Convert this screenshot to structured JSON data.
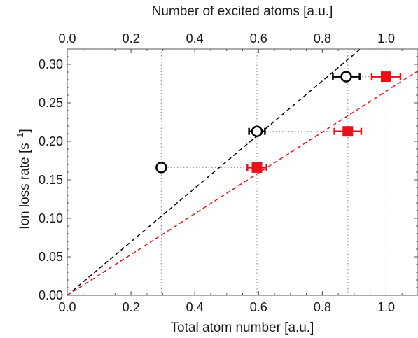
{
  "chart_data": {
    "type": "scatter",
    "title": "",
    "xlabel": "Total atom number [a.u.]",
    "x2label": "Number of excited atoms [a.u.]",
    "ylabel_main": "Ion loss rate [s",
    "ylabel_sup": "−1",
    "ylabel_close": "]",
    "xlim": [
      0.0,
      1.1
    ],
    "ylim": [
      0.0,
      0.32
    ],
    "xticks": [
      "0.0",
      "0.2",
      "0.4",
      "0.6",
      "0.8",
      "1.0"
    ],
    "x2ticks": [
      "0.0",
      "0.2",
      "0.4",
      "0.6",
      "0.8",
      "1.0"
    ],
    "yticks": [
      "0.00",
      "0.05",
      "0.10",
      "0.15",
      "0.20",
      "0.25",
      "0.30"
    ],
    "grid": false,
    "colors": {
      "excited": "#000000",
      "total": "#e8111a",
      "connector": "#999999",
      "axis": "#555555"
    },
    "series": [
      {
        "marker": "open-circle",
        "color": "#000000",
        "points": [
          {
            "x": 0.295,
            "y": 0.166,
            "xerr": 0.0
          },
          {
            "x": 0.595,
            "y": 0.213,
            "xerr": 0.025
          },
          {
            "x": 0.875,
            "y": 0.284,
            "xerr": 0.042
          }
        ]
      },
      {
        "marker": "filled-square",
        "color": "#e8111a",
        "points": [
          {
            "x": 0.595,
            "y": 0.166,
            "xerr": 0.03
          },
          {
            "x": 0.88,
            "y": 0.213,
            "xerr": 0.042
          },
          {
            "x": 1.0,
            "y": 0.284,
            "xerr": 0.045
          }
        ]
      }
    ],
    "fit_lines": [
      {
        "color": "#000000",
        "slope": 0.348,
        "style": "dashed"
      },
      {
        "color": "#e8111a",
        "slope": 0.265,
        "style": "dashed"
      }
    ],
    "connectors": [
      {
        "x1": 0.295,
        "x2": 0.595,
        "y": 0.166
      },
      {
        "x1": 0.595,
        "x2": 0.88,
        "y": 0.213
      },
      {
        "x1": 0.875,
        "x2": 1.0,
        "y": 0.284
      }
    ],
    "drop_lines": [
      0.295,
      0.595,
      0.88,
      1.0
    ]
  }
}
